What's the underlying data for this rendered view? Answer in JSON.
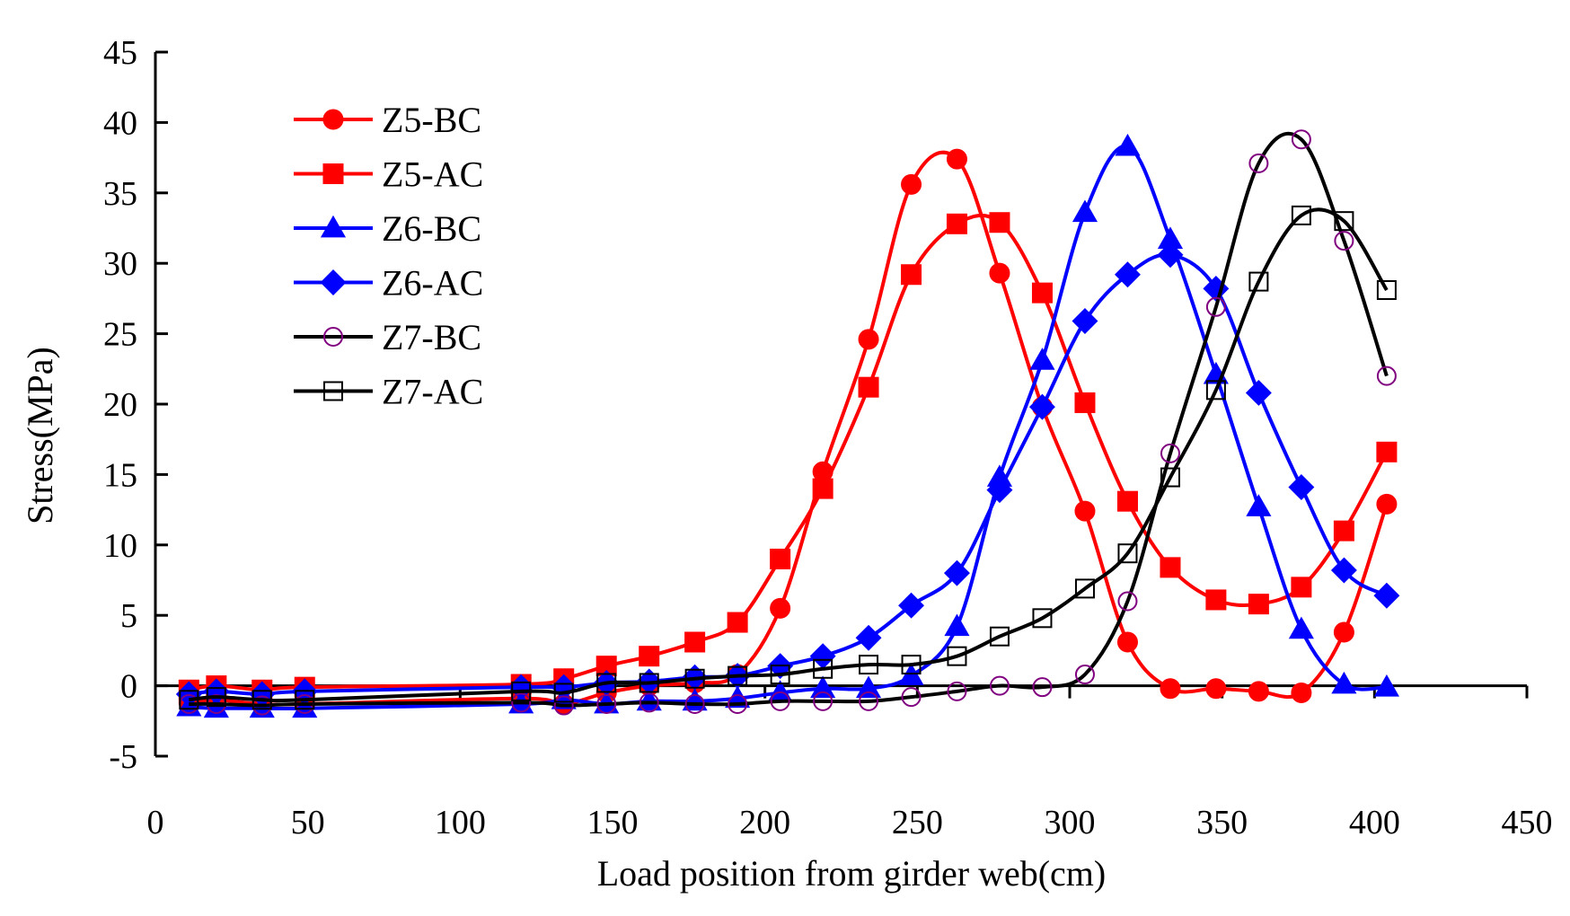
{
  "chart_data": {
    "type": "line",
    "title": "",
    "xlabel": "Load position from girder web(cm)",
    "ylabel": "Stress(MPa)",
    "xlim": [
      0,
      450
    ],
    "ylim": [
      -5,
      45
    ],
    "xticks": [
      0,
      50,
      100,
      150,
      200,
      250,
      300,
      350,
      400,
      450
    ],
    "yticks": [
      -5,
      0,
      5,
      10,
      15,
      20,
      25,
      30,
      35,
      40,
      45
    ],
    "grid": false,
    "legend_position": "top-left",
    "series": [
      {
        "name": "Z5-BC",
        "color": "#ff0000",
        "marker": "circle",
        "filled": true,
        "x": [
          11,
          20,
          35,
          49,
          120,
          134,
          148,
          162,
          177,
          191,
          205,
          219,
          234,
          248,
          263,
          277,
          291,
          305,
          319,
          333,
          348,
          362,
          376,
          390,
          404
        ],
        "y": [
          -1.2,
          -1.0,
          -1.3,
          -1.3,
          -0.9,
          -1.3,
          -0.5,
          0.0,
          0.2,
          0.8,
          5.5,
          15.2,
          24.6,
          35.6,
          37.4,
          29.3,
          19.8,
          12.4,
          3.1,
          -0.2,
          -0.2,
          -0.4,
          -0.5,
          3.8,
          12.9
        ]
      },
      {
        "name": "Z5-AC",
        "color": "#ff0000",
        "marker": "square",
        "filled": true,
        "x": [
          11,
          20,
          35,
          49,
          120,
          134,
          148,
          162,
          177,
          191,
          205,
          219,
          234,
          248,
          263,
          277,
          291,
          305,
          319,
          333,
          348,
          362,
          376,
          390,
          404
        ],
        "y": [
          -0.3,
          0.0,
          -0.3,
          -0.1,
          0.1,
          0.5,
          1.4,
          2.1,
          3.1,
          4.5,
          9.0,
          14.0,
          21.2,
          29.2,
          32.8,
          32.9,
          27.9,
          20.1,
          13.1,
          8.4,
          6.1,
          5.8,
          7.0,
          11.0,
          16.6
        ]
      },
      {
        "name": "Z6-BC",
        "color": "#0000ff",
        "marker": "triangle",
        "filled": true,
        "x": [
          11,
          20,
          35,
          49,
          120,
          134,
          148,
          162,
          177,
          191,
          205,
          219,
          234,
          248,
          263,
          277,
          291,
          305,
          319,
          333,
          348,
          362,
          376,
          390,
          404
        ],
        "y": [
          -1.5,
          -1.6,
          -1.6,
          -1.6,
          -1.3,
          -1.0,
          -1.3,
          -1.1,
          -1.1,
          -0.9,
          -0.5,
          -0.2,
          -0.2,
          0.7,
          4.2,
          14.8,
          23.1,
          33.6,
          38.3,
          31.7,
          22.1,
          12.7,
          4.0,
          0.1,
          -0.1
        ]
      },
      {
        "name": "Z6-AC",
        "color": "#0000ff",
        "marker": "diamond",
        "filled": true,
        "x": [
          11,
          20,
          35,
          49,
          120,
          134,
          148,
          162,
          177,
          191,
          205,
          219,
          234,
          248,
          263,
          277,
          291,
          305,
          319,
          333,
          348,
          362,
          376,
          390,
          404
        ],
        "y": [
          -0.6,
          -0.4,
          -0.6,
          -0.4,
          -0.1,
          -0.1,
          0.2,
          0.3,
          0.6,
          0.7,
          1.4,
          2.1,
          3.4,
          5.7,
          8.0,
          13.9,
          19.8,
          25.9,
          29.2,
          30.6,
          28.2,
          20.8,
          14.1,
          8.2,
          6.4
        ]
      },
      {
        "name": "Z7-BC",
        "color": "#000000",
        "marker": "circle",
        "filled": false,
        "marker_color": "#800080",
        "x": [
          11,
          20,
          35,
          49,
          120,
          134,
          148,
          162,
          177,
          191,
          205,
          219,
          234,
          248,
          263,
          277,
          291,
          305,
          319,
          333,
          348,
          362,
          376,
          390,
          404
        ],
        "y": [
          -1.3,
          -1.3,
          -1.4,
          -1.3,
          -1.2,
          -1.4,
          -1.3,
          -1.2,
          -1.3,
          -1.3,
          -1.1,
          -1.1,
          -1.1,
          -0.8,
          -0.4,
          0.0,
          -0.1,
          0.8,
          6.0,
          16.5,
          26.9,
          37.1,
          38.8,
          31.6,
          22.0
        ]
      },
      {
        "name": "Z7-AC",
        "color": "#000000",
        "marker": "square",
        "filled": false,
        "marker_color": "#000000",
        "x": [
          11,
          20,
          35,
          49,
          120,
          134,
          148,
          162,
          177,
          191,
          205,
          219,
          234,
          248,
          263,
          277,
          291,
          305,
          319,
          333,
          348,
          362,
          376,
          390,
          404
        ],
        "y": [
          -1.0,
          -0.8,
          -1.0,
          -1.0,
          -0.4,
          -0.5,
          0.2,
          0.2,
          0.5,
          0.7,
          0.8,
          1.2,
          1.5,
          1.5,
          2.1,
          3.5,
          4.8,
          6.9,
          9.4,
          14.8,
          21.0,
          28.7,
          33.4,
          33.0,
          28.1
        ]
      }
    ]
  }
}
